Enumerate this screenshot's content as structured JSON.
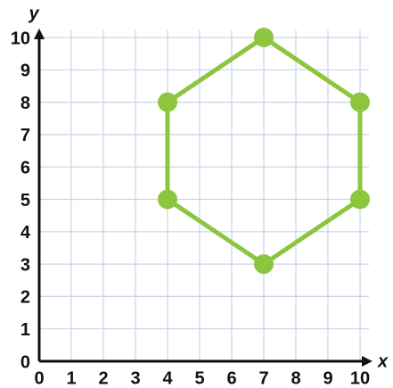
{
  "chart_data": {
    "type": "line",
    "closed": true,
    "xlabel": "x",
    "ylabel": "y",
    "x": [
      4,
      7,
      10,
      10,
      7,
      4
    ],
    "series": [
      {
        "color": "#8cc63f",
        "values": [
          8,
          10,
          8,
          5,
          3,
          5
        ]
      }
    ],
    "xlim": [
      0,
      10
    ],
    "ylim": [
      0,
      10
    ],
    "xticks": [
      0,
      1,
      2,
      3,
      4,
      5,
      6,
      7,
      8,
      9,
      10
    ],
    "yticks": [
      0,
      1,
      2,
      3,
      4,
      5,
      6,
      7,
      8,
      9,
      10
    ],
    "grid": true
  }
}
